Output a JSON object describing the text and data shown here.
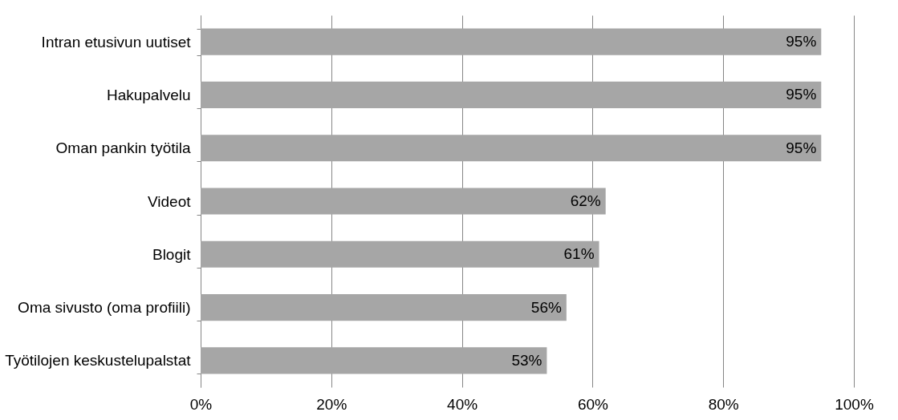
{
  "chart_data": {
    "type": "bar",
    "orientation": "horizontal",
    "categories": [
      "Intran etusivun uutiset",
      "Hakupalvelu",
      "Oman pankin työtila",
      "Videot",
      "Blogit",
      "Oma sivusto (oma profiili)",
      "Työtilojen keskustelupalstat"
    ],
    "values": [
      95,
      95,
      95,
      62,
      61,
      56,
      53
    ],
    "color": "#a6a6a6",
    "value_labels": [
      "95%",
      "95%",
      "95%",
      "62%",
      "61%",
      "56%",
      "53%"
    ],
    "xlim": [
      0,
      100
    ],
    "xticks": [
      {
        "value": 0,
        "label": "0%"
      },
      {
        "value": 20,
        "label": "20%"
      },
      {
        "value": 40,
        "label": "40%"
      },
      {
        "value": 60,
        "label": "60%"
      },
      {
        "value": 80,
        "label": "80%"
      },
      {
        "value": 100,
        "label": "100%"
      }
    ],
    "grid": "x"
  }
}
